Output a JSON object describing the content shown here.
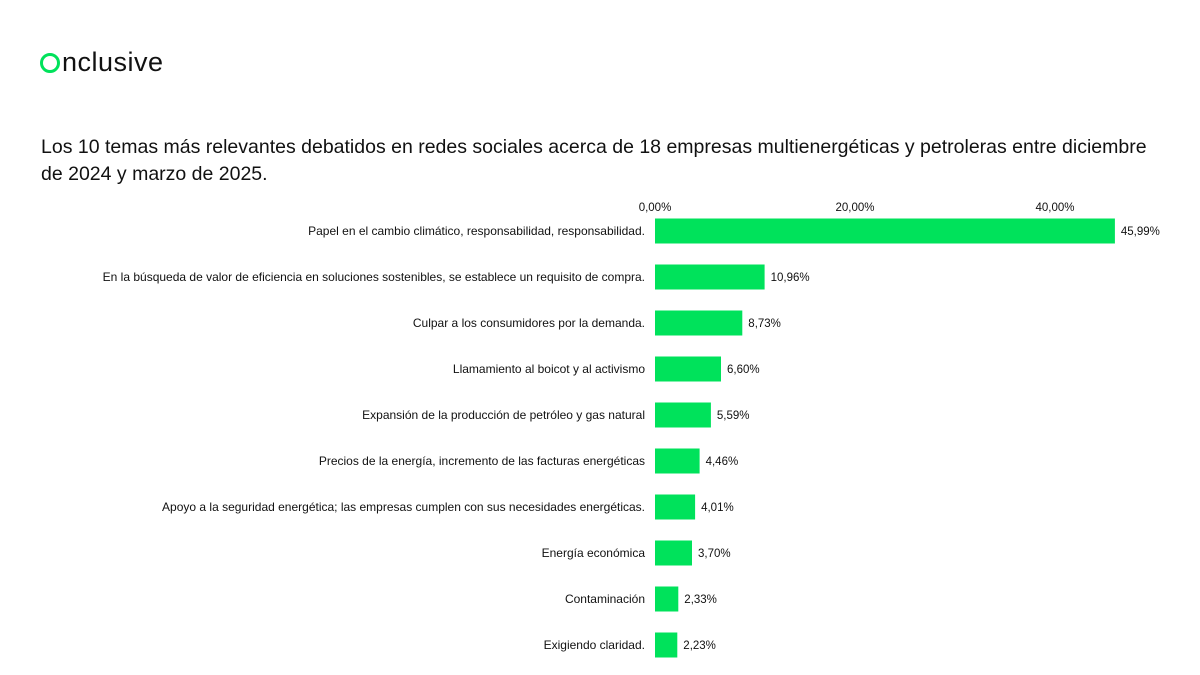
{
  "brand": {
    "logo_text": "nclusive",
    "logo_icon": "ring-o-icon",
    "accent_color": "#00e25b"
  },
  "chart_data": {
    "type": "bar",
    "orientation": "horizontal",
    "title": "Los 10 temas más relevantes debatidos en redes sociales acerca de 18 empresas multienergéticas y petroleras entre diciembre de 2024 y marzo de 2025.",
    "categories": [
      "Papel en el cambio climático, responsabilidad, responsabilidad.",
      "En la búsqueda de valor de eficiencia en soluciones sostenibles, se establece un requisito de compra.",
      "Culpar a los consumidores por la demanda.",
      "Llamamiento al boicot y al activismo",
      "Expansión de la producción de petróleo y gas natural",
      "Precios de la energía, incremento de las facturas energéticas",
      "Apoyo a la seguridad energética; las empresas cumplen con sus necesidades energéticas.",
      "Energía económica",
      "Contaminación",
      "Exigiendo claridad."
    ],
    "values": [
      45.99,
      10.96,
      8.73,
      6.6,
      5.59,
      4.46,
      4.01,
      3.7,
      2.33,
      2.23
    ],
    "value_labels": [
      "45,99%",
      "10,96%",
      "8,73%",
      "6,60%",
      "5,59%",
      "4,46%",
      "4,01%",
      "3,70%",
      "2,33%",
      "2,23%"
    ],
    "axis_ticks": [
      0,
      20,
      40
    ],
    "axis_tick_labels": [
      "0,00%",
      "20,00%",
      "40,00%"
    ],
    "axis_position": "top",
    "xlim": [
      0,
      48
    ],
    "grid": false,
    "bar_color": "#00e25b"
  }
}
